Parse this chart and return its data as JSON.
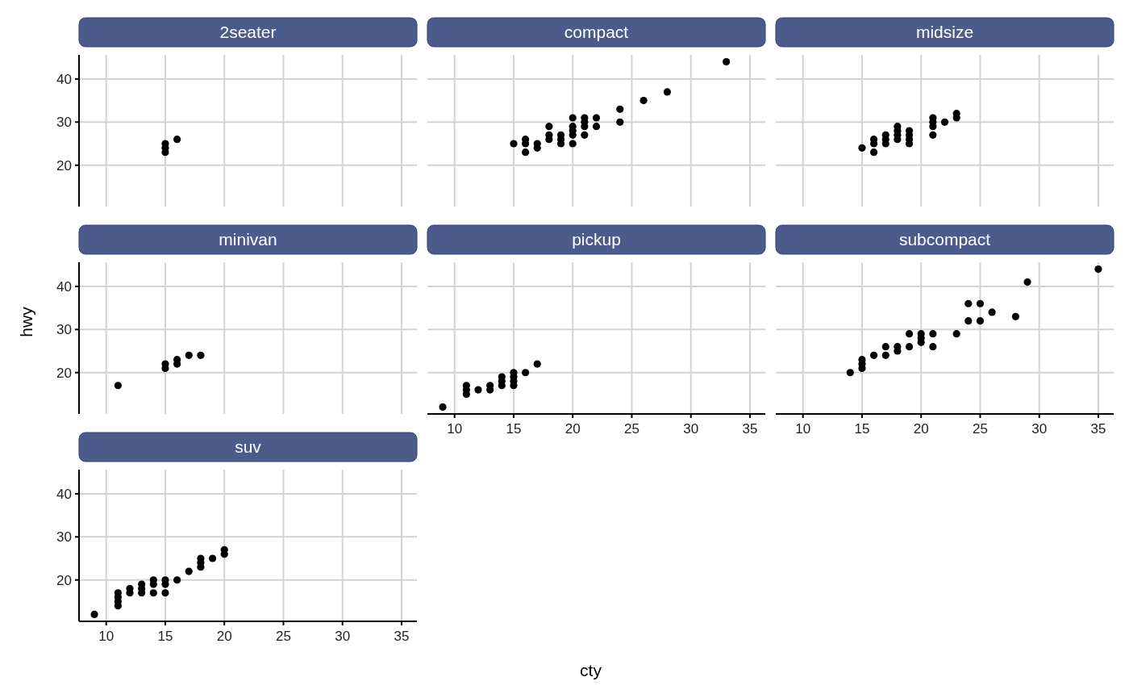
{
  "chart_data": [
    {
      "type": "scatter",
      "title": "2seater",
      "x": [
        15,
        15,
        15,
        16
      ],
      "values": [
        23,
        24,
        25,
        26
      ],
      "color": "#000000",
      "marker": "circle",
      "grid": true,
      "xlim": [
        7.7,
        36.3
      ],
      "ylim": [
        10.4,
        45.6
      ],
      "xticks": [
        10,
        15,
        20,
        25,
        30,
        35
      ],
      "yticks": [
        20,
        30,
        40
      ],
      "tick_labels": "y"
    },
    {
      "type": "scatter",
      "title": "compact",
      "x": [
        15,
        16,
        16,
        16,
        17,
        17,
        18,
        18,
        18,
        19,
        19,
        19,
        20,
        20,
        20,
        20,
        20,
        21,
        21,
        21,
        21,
        22,
        22,
        24,
        24,
        26,
        28,
        33
      ],
      "values": [
        25,
        26,
        25,
        23,
        25,
        24,
        29,
        27,
        26,
        27,
        26,
        25,
        31,
        29,
        28,
        27,
        25,
        31,
        30,
        29,
        27,
        31,
        29,
        33,
        30,
        35,
        37,
        44
      ],
      "color": "#000000",
      "marker": "circle",
      "grid": true,
      "xlim": [
        7.7,
        36.3
      ],
      "ylim": [
        10.4,
        45.6
      ],
      "xticks": [
        10,
        15,
        20,
        25,
        30,
        35
      ],
      "yticks": [
        20,
        30,
        40
      ],
      "tick_labels": false
    },
    {
      "type": "scatter",
      "title": "midsize",
      "x": [
        15,
        16,
        16,
        16,
        17,
        17,
        17,
        18,
        18,
        18,
        18,
        19,
        19,
        19,
        19,
        21,
        21,
        21,
        21,
        22,
        23,
        23
      ],
      "values": [
        24,
        26,
        25,
        23,
        27,
        26,
        25,
        29,
        28,
        27,
        26,
        28,
        27,
        26,
        25,
        31,
        30,
        29,
        27,
        30,
        32,
        31
      ],
      "color": "#000000",
      "marker": "circle",
      "grid": true,
      "xlim": [
        7.7,
        36.3
      ],
      "ylim": [
        10.4,
        45.6
      ],
      "xticks": [
        10,
        15,
        20,
        25,
        30,
        35
      ],
      "yticks": [
        20,
        30,
        40
      ],
      "tick_labels": false
    },
    {
      "type": "scatter",
      "title": "minivan",
      "ylabel": "hwy",
      "x": [
        11,
        15,
        15,
        16,
        16,
        17,
        18
      ],
      "values": [
        17,
        22,
        21,
        23,
        22,
        24,
        24
      ],
      "color": "#000000",
      "marker": "circle",
      "grid": true,
      "xlim": [
        7.7,
        36.3
      ],
      "ylim": [
        10.4,
        45.6
      ],
      "xticks": [
        10,
        15,
        20,
        25,
        30,
        35
      ],
      "yticks": [
        20,
        30,
        40
      ],
      "tick_labels": "y"
    },
    {
      "type": "scatter",
      "title": "pickup",
      "xlabel": "cty",
      "x": [
        9,
        11,
        11,
        11,
        12,
        13,
        13,
        14,
        14,
        14,
        15,
        15,
        15,
        15,
        16,
        17
      ],
      "values": [
        12,
        17,
        16,
        15,
        16,
        17,
        16,
        19,
        18,
        17,
        20,
        19,
        18,
        17,
        20,
        22
      ],
      "color": "#000000",
      "marker": "circle",
      "grid": true,
      "xlim": [
        7.7,
        36.3
      ],
      "ylim": [
        10.4,
        45.6
      ],
      "xticks": [
        10,
        15,
        20,
        25,
        30,
        35
      ],
      "yticks": [
        20,
        30,
        40
      ],
      "tick_labels": "x"
    },
    {
      "type": "scatter",
      "title": "subcompact",
      "x": [
        14,
        15,
        15,
        15,
        16,
        17,
        17,
        18,
        18,
        19,
        19,
        20,
        20,
        20,
        21,
        21,
        23,
        24,
        24,
        25,
        25,
        26,
        28,
        29,
        35
      ],
      "values": [
        20,
        23,
        22,
        21,
        24,
        26,
        24,
        26,
        25,
        29,
        26,
        29,
        28,
        27,
        29,
        26,
        29,
        36,
        32,
        36,
        32,
        34,
        33,
        41,
        44
      ],
      "color": "#000000",
      "marker": "circle",
      "grid": true,
      "xlim": [
        7.7,
        36.3
      ],
      "ylim": [
        10.4,
        45.6
      ],
      "xticks": [
        10,
        15,
        20,
        25,
        30,
        35
      ],
      "yticks": [
        20,
        30,
        40
      ],
      "tick_labels": "x"
    },
    {
      "type": "scatter",
      "title": "suv",
      "x": [
        9,
        11,
        11,
        11,
        11,
        12,
        12,
        13,
        13,
        13,
        14,
        14,
        14,
        15,
        15,
        15,
        16,
        17,
        18,
        18,
        18,
        19,
        20,
        20
      ],
      "values": [
        12,
        17,
        16,
        15,
        14,
        18,
        17,
        19,
        18,
        17,
        20,
        19,
        17,
        20,
        19,
        17,
        20,
        22,
        25,
        24,
        23,
        25,
        27,
        26
      ],
      "color": "#000000",
      "marker": "circle",
      "grid": true,
      "xlim": [
        7.7,
        36.3
      ],
      "ylim": [
        10.4,
        45.6
      ],
      "xticks": [
        10,
        15,
        20,
        25,
        30,
        35
      ],
      "yticks": [
        20,
        30,
        40
      ]
    }
  ]
}
